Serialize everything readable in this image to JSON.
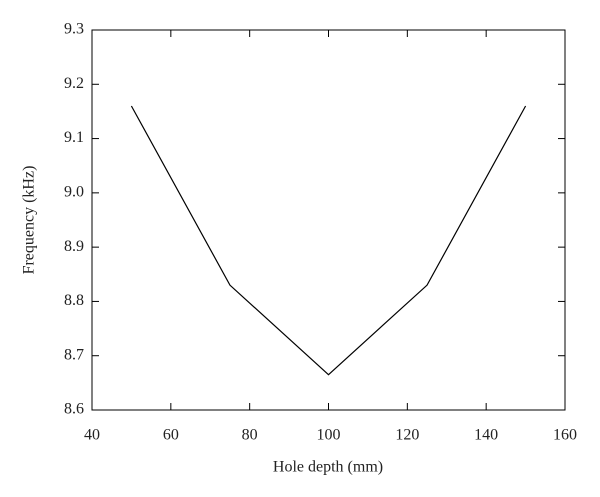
{
  "chart_data": {
    "type": "line",
    "x_label": "Hole depth (mm)",
    "y_label": "Frequency (kHz)",
    "x": [
      50,
      75,
      100,
      125,
      150
    ],
    "series": [
      {
        "color": "#000000",
        "values": [
          9.16,
          8.83,
          8.665,
          8.83,
          9.16
        ]
      }
    ],
    "xlim": [
      40,
      160
    ],
    "xticks": [
      40,
      60,
      80,
      100,
      120,
      140,
      160
    ],
    "ylim": [
      8.6,
      9.3
    ],
    "yticks": [
      8.6,
      8.7,
      8.8,
      8.9,
      {
        "value": 9,
        "label": "9.0"
      },
      9.1,
      9.2,
      9.3
    ],
    "grid": false
  }
}
